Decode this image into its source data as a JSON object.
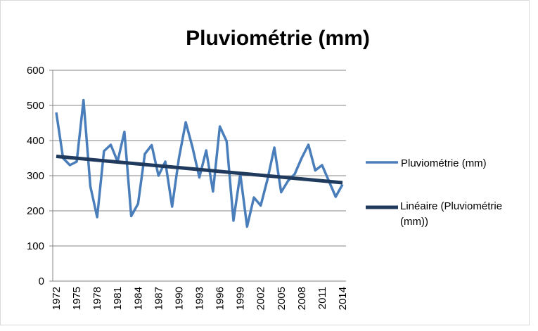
{
  "chart_data": {
    "type": "line",
    "title": "Pluviométrie (mm)",
    "categories": [
      "1972",
      null,
      null,
      "1975",
      null,
      null,
      "1978",
      null,
      null,
      "1981",
      null,
      null,
      "1984",
      null,
      null,
      "1987",
      null,
      null,
      "1990",
      null,
      null,
      "1993",
      null,
      null,
      "1996",
      null,
      null,
      "1999",
      null,
      null,
      "2002",
      null,
      null,
      "2005",
      null,
      null,
      "2008",
      null,
      null,
      "2011",
      null,
      null,
      "2014"
    ],
    "series": [
      {
        "name": "Pluviométrie (mm)",
        "color": "#4a7ebb",
        "values": [
          480,
          350,
          330,
          340,
          515,
          270,
          182,
          370,
          388,
          340,
          425,
          185,
          220,
          362,
          387,
          300,
          340,
          212,
          350,
          452,
          380,
          295,
          372,
          255,
          440,
          398,
          172,
          305,
          155,
          238,
          215,
          290,
          380,
          253,
          285,
          305,
          350,
          388,
          315,
          330,
          285,
          240,
          275
        ]
      }
    ],
    "trendline": {
      "name": "Linéaire (Pluviométrie (mm))",
      "color": "#1f3a5c",
      "values": [
        355,
        280
      ]
    },
    "ylim": [
      0,
      600
    ],
    "yticks": [
      0,
      100,
      200,
      300,
      400,
      500,
      600
    ],
    "grid": true,
    "legend": "right"
  }
}
